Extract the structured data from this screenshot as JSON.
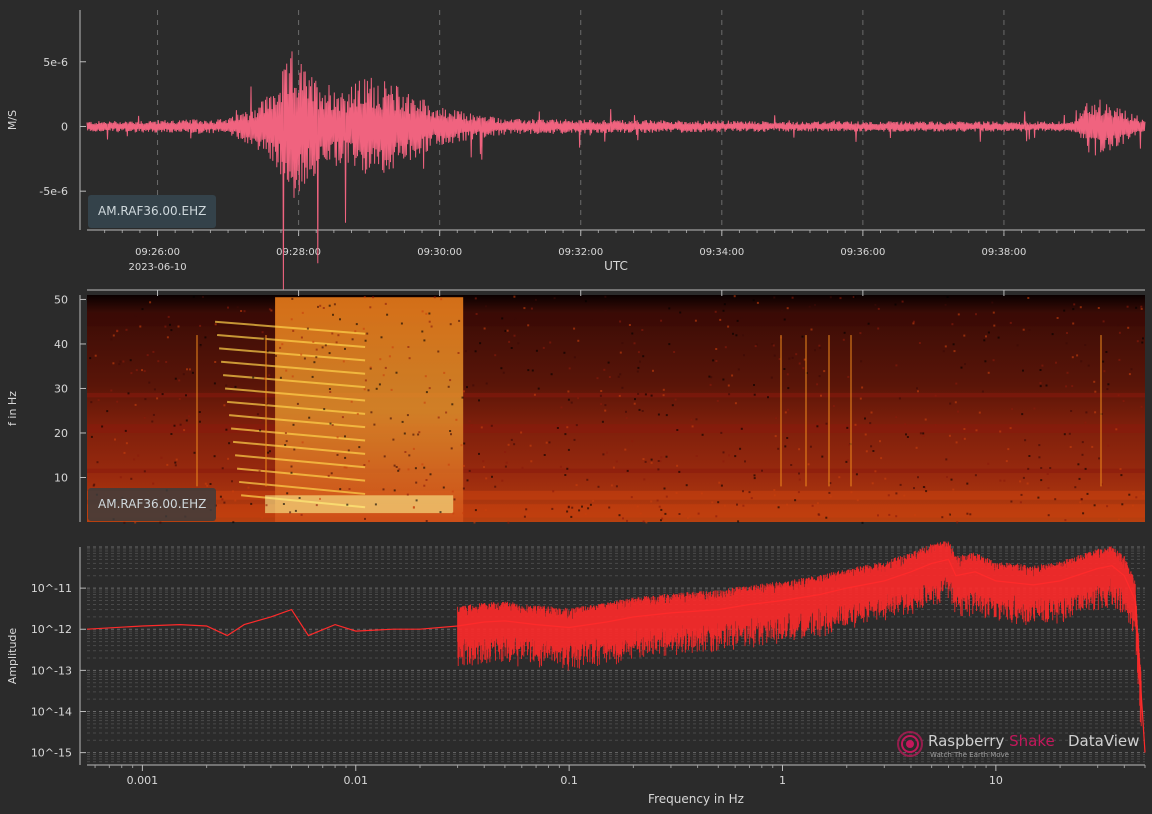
{
  "chart_data": [
    {
      "type": "line",
      "panel": "waveform",
      "ylabel": "M/S",
      "xlabel": "UTC",
      "station": "AM.RAF36.00.EHZ",
      "date_label": "2023-06-10",
      "yticks": [
        "5e-6",
        "0",
        "-5e-6"
      ],
      "ytick_values": [
        5e-06,
        0,
        -5e-06
      ],
      "ylim": [
        -8e-06,
        9e-06
      ],
      "xticks": [
        "09:26:00",
        "09:28:00",
        "09:30:00",
        "09:32:00",
        "09:34:00",
        "09:36:00",
        "09:38:00"
      ],
      "xlim": [
        "09:25:00",
        "09:40:00"
      ],
      "grid": "vertical dashed",
      "series": [
        {
          "color": "#f0637f",
          "envelope": {
            "time": [
              "09:25:00",
              "09:26:00",
              "09:27:00",
              "09:27:20",
              "09:27:40",
              "09:27:55",
              "09:28:10",
              "09:28:40",
              "09:29:00",
              "09:29:30",
              "09:30:00",
              "09:30:30",
              "09:31:00",
              "09:33:00",
              "09:35:00",
              "09:37:00",
              "09:39:00",
              "09:39:15",
              "09:40:00"
            ],
            "amplitude": [
              4e-07,
              5e-07,
              6e-07,
              1.5e-06,
              3e-06,
              6e-06,
              4e-06,
              3e-06,
              4e-06,
              3e-06,
              1.5e-06,
              1e-06,
              6e-07,
              5e-07,
              4e-07,
              4e-07,
              4e-07,
              2.5e-06,
              6e-07
            ]
          }
        }
      ]
    },
    {
      "type": "heatmap",
      "panel": "spectrogram",
      "ylabel": "f in Hz",
      "station": "AM.RAF36.00.EHZ",
      "yticks": [
        "50",
        "40",
        "30",
        "20",
        "10"
      ],
      "ytick_values": [
        50,
        40,
        30,
        20,
        10
      ],
      "ylim": [
        0,
        51
      ],
      "xlim": [
        "09:25:00",
        "09:40:00"
      ],
      "colormap": [
        "#000000",
        "#3a0a06",
        "#8a1a0c",
        "#c8400e",
        "#f08a1c",
        "#ffd24a",
        "#ffff9a"
      ]
    },
    {
      "type": "line",
      "panel": "spectrum",
      "xlabel": "Frequency in Hz",
      "ylabel": "Amplitude",
      "xscale": "log",
      "yscale": "log",
      "xticks": [
        "0.001",
        "0.01",
        "0.1",
        "1",
        "10"
      ],
      "xtick_values": [
        0.001,
        0.01,
        0.1,
        1,
        10
      ],
      "yticks": [
        "10^-11",
        "10^-12",
        "10^-13",
        "10^-14",
        "10^-15"
      ],
      "ytick_values": [
        1e-11,
        1e-12,
        1e-13,
        1e-14,
        1e-15
      ],
      "xlim": [
        0.00055,
        50
      ],
      "ylim": [
        5e-16,
        1e-10
      ],
      "grid": true,
      "series": [
        {
          "color": "#ff2a2a",
          "x": [
            0.00055,
            0.001,
            0.0015,
            0.002,
            0.0025,
            0.003,
            0.004,
            0.005,
            0.006,
            0.008,
            0.01,
            0.015,
            0.02,
            0.03,
            0.04,
            0.05,
            0.07,
            0.1,
            0.15,
            0.2,
            0.3,
            0.5,
            0.7,
            1,
            1.5,
            2,
            3,
            4,
            5,
            6,
            6.5,
            8,
            10,
            15,
            20,
            30,
            35,
            40,
            45,
            50
          ],
          "y": [
            1e-12,
            1.2e-12,
            1.3e-12,
            1.2e-12,
            7e-13,
            1.3e-12,
            2e-12,
            3e-12,
            7e-13,
            1.3e-12,
            9e-13,
            1e-12,
            1e-12,
            1.2e-12,
            1.5e-12,
            1.6e-12,
            1.3e-12,
            1.1e-12,
            1.5e-12,
            2e-12,
            2.5e-12,
            3e-12,
            4e-12,
            5e-12,
            7e-12,
            1e-11,
            1.5e-11,
            2.5e-11,
            4e-11,
            5e-11,
            2e-11,
            2.5e-11,
            1.5e-11,
            1.2e-11,
            1.5e-11,
            3e-11,
            3.5e-11,
            2e-11,
            5e-12,
            1e-15
          ]
        }
      ]
    }
  ],
  "branding": {
    "raspberry": "Raspberry",
    "shake": "Shake",
    "product": "DataView",
    "tagline": "Watch The Earth Move"
  }
}
